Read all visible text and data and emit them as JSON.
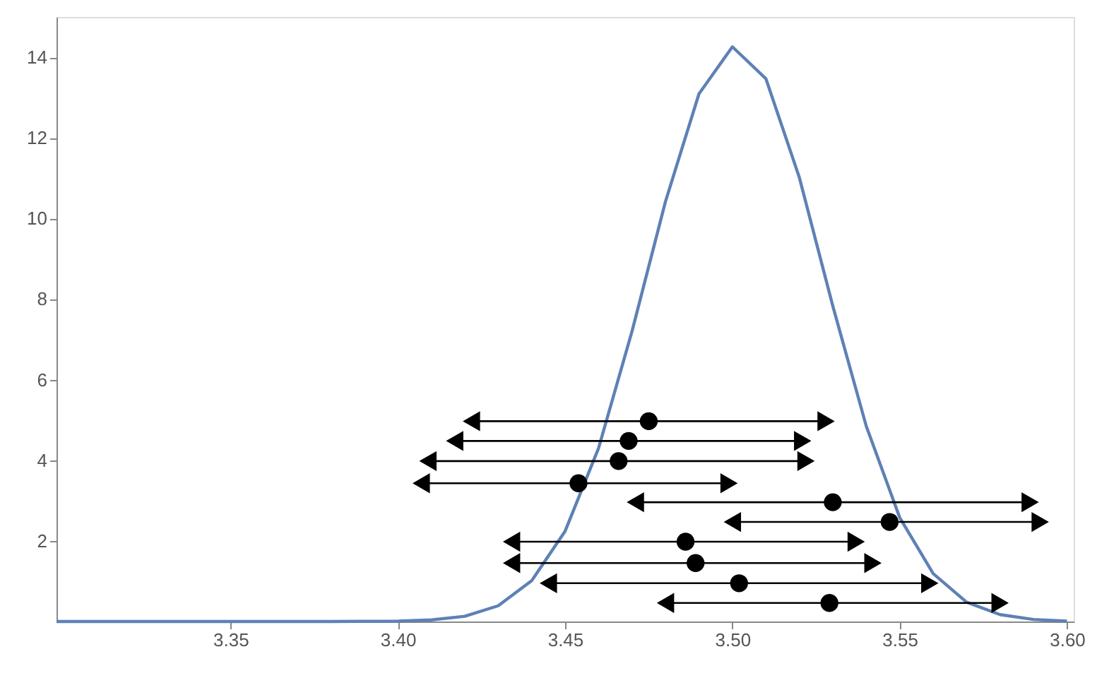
{
  "chart_data": {
    "type": "line",
    "xlim": [
      3.298,
      3.602
    ],
    "ylim": [
      0,
      15
    ],
    "xticks": [
      {
        "value": 3.35,
        "label": "3.35"
      },
      {
        "value": 3.4,
        "label": "3.40"
      },
      {
        "value": 3.45,
        "label": "3.45"
      },
      {
        "value": 3.5,
        "label": "3.50"
      },
      {
        "value": 3.55,
        "label": "3.55"
      },
      {
        "value": 3.6,
        "label": "3.60"
      }
    ],
    "yticks": [
      2,
      4,
      6,
      8,
      10,
      12,
      14
    ],
    "series": [
      {
        "color": "#5e81b5",
        "marker": "none",
        "line_style": "solid",
        "x": [
          3.298,
          3.38,
          3.4,
          3.41,
          3.42,
          3.43,
          3.44,
          3.45,
          3.46,
          3.47,
          3.48,
          3.49,
          3.5,
          3.51,
          3.52,
          3.53,
          3.54,
          3.55,
          3.56,
          3.57,
          3.58,
          3.59,
          3.6
        ],
        "values": [
          0,
          0,
          0.01,
          0.04,
          0.13,
          0.39,
          1.01,
          2.24,
          4.3,
          7.2,
          10.42,
          13.09,
          14.26,
          13.47,
          11.02,
          7.83,
          4.85,
          2.58,
          1.19,
          0.48,
          0.17,
          0.05,
          0.01
        ]
      },
      {
        "type": "scatter",
        "color": "#000000",
        "marker": "circle",
        "x": [
          3.475,
          3.469,
          3.466,
          3.454,
          3.53,
          3.547,
          3.486,
          3.489,
          3.502,
          3.529
        ],
        "values": [
          4.97,
          4.48,
          3.98,
          3.43,
          2.96,
          2.47,
          1.98,
          1.45,
          0.95,
          0.46
        ],
        "xerrors": [
          [
            3.422,
            3.528
          ],
          [
            3.417,
            3.521
          ],
          [
            3.409,
            3.522
          ],
          [
            3.407,
            3.499
          ],
          [
            3.471,
            3.589
          ],
          [
            3.5,
            3.592
          ],
          [
            3.434,
            3.537
          ],
          [
            3.434,
            3.542
          ],
          [
            3.445,
            3.559
          ],
          [
            3.48,
            3.58
          ]
        ]
      }
    ]
  }
}
